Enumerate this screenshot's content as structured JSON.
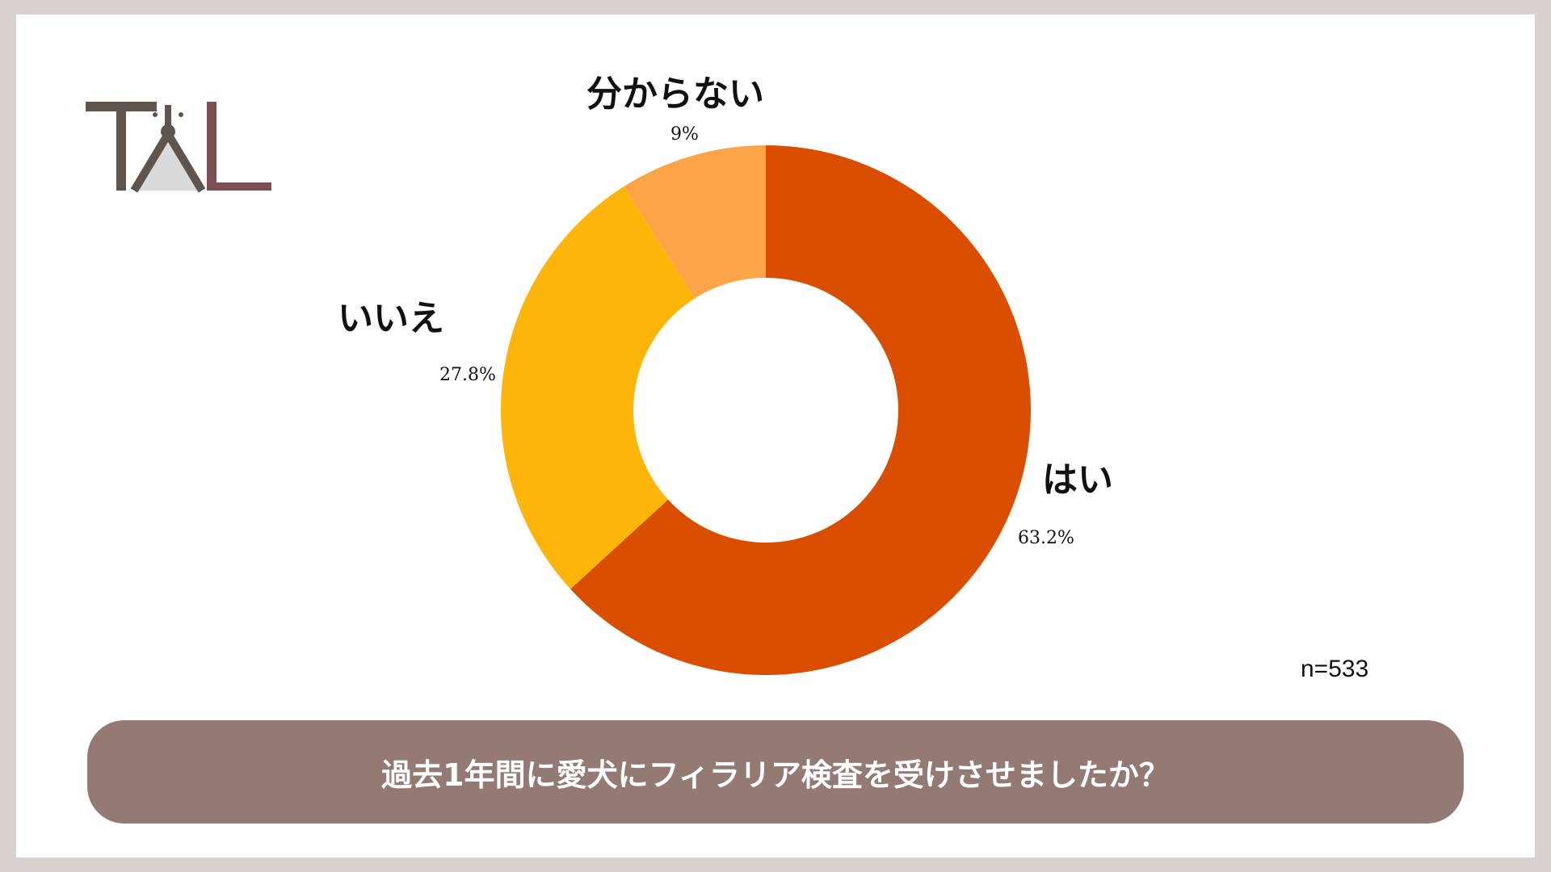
{
  "chart_data": {
    "type": "pie",
    "categories": [
      "はい",
      "いいえ",
      "分からない"
    ],
    "values": [
      63.2,
      27.8,
      9
    ],
    "value_labels": [
      "63.2%",
      "27.8%",
      "9%"
    ],
    "colors": [
      "#d94e00",
      "#fcb508",
      "#fba448"
    ],
    "donut": true,
    "title": "過去1年間に愛犬にフィラリア検査を受けさせましたか？",
    "sample_size": "n=533",
    "legend": "none"
  },
  "logo": {
    "colors": [
      "#5e554f",
      "#7d4f55",
      "#d9d9d9"
    ]
  }
}
